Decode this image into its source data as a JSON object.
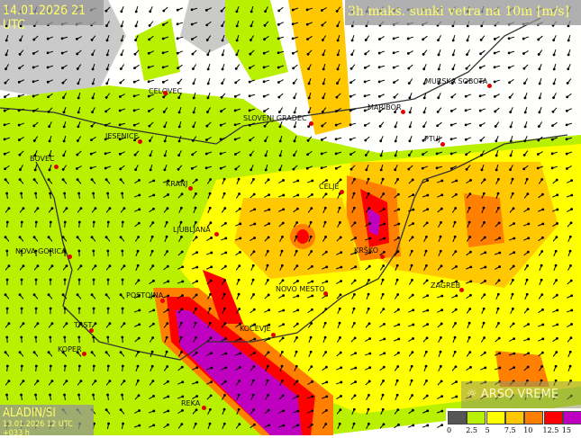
{
  "header": {
    "datetime": "14.01.2026 21 UTC",
    "parameter": "3h maks. sunki vetra na 10m [m/s]"
  },
  "model": {
    "name": "ALADIN/SI",
    "run": "13.01.2026 12 UTC +033 h"
  },
  "brand": {
    "logo_text": "ARSO VREME",
    "icon": "sun-cloud-icon"
  },
  "legend": {
    "labels": [
      "0",
      "2.5",
      "5",
      "7.5",
      "10",
      "12.5",
      "15"
    ],
    "colors": [
      "#555555",
      "#b8f000",
      "#ffff00",
      "#ffc800",
      "#ff8000",
      "#ff0000",
      "#c000c0"
    ]
  },
  "cities": [
    {
      "name": "CELOVEC"
    },
    {
      "name": "MURSKA SOBOTA"
    },
    {
      "name": "MARIBOR"
    },
    {
      "name": "SLOVENJ GRADEC"
    },
    {
      "name": "JESENICE"
    },
    {
      "name": "PTUJ"
    },
    {
      "name": "BOVEC"
    },
    {
      "name": "KRANJ"
    },
    {
      "name": "CELJE"
    },
    {
      "name": "LJUBLJANA"
    },
    {
      "name": "KRŠKO"
    },
    {
      "name": "NOVA GORICA"
    },
    {
      "name": "ZAGREB"
    },
    {
      "name": "POSTOJNA"
    },
    {
      "name": "NOVO MESTO"
    },
    {
      "name": "KOČEVJE"
    },
    {
      "name": "TRST"
    },
    {
      "name": "KOPER"
    },
    {
      "name": "REKA"
    }
  ]
}
